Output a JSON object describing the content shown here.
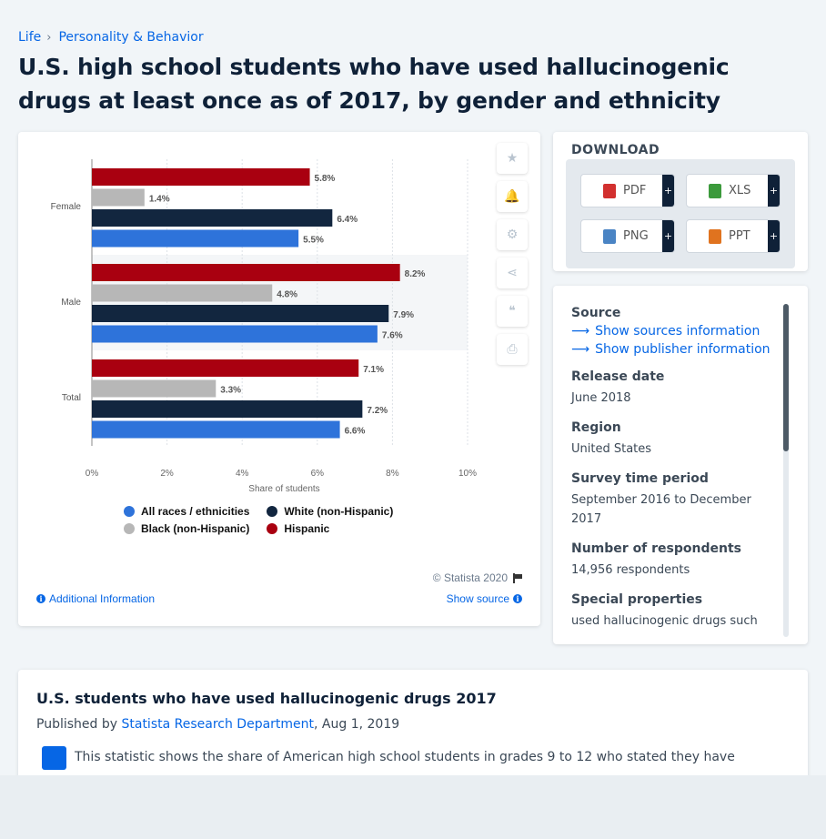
{
  "breadcrumb": {
    "items": [
      "Life",
      "Personality & Behavior"
    ],
    "separator": "›"
  },
  "page_title": "U.S. high school students who have used hallucinogenic drugs at least once as of 2017, by gender and ethnicity",
  "chart_data": {
    "type": "bar",
    "orientation": "horizontal",
    "categories": [
      "Female",
      "Male",
      "Total"
    ],
    "series": [
      {
        "name": "Hispanic",
        "color": "#a90010",
        "values": [
          5.8,
          8.2,
          7.1
        ]
      },
      {
        "name": "Black (non-Hispanic)",
        "color": "#b7b7b7",
        "values": [
          1.4,
          4.8,
          3.3
        ]
      },
      {
        "name": "White (non-Hispanic)",
        "color": "#12263f",
        "values": [
          6.4,
          7.9,
          7.2
        ]
      },
      {
        "name": "All races / ethnicities",
        "color": "#2e73da",
        "values": [
          5.5,
          7.6,
          6.6
        ]
      }
    ],
    "data_labels": [
      [
        "5.8%",
        "1.4%",
        "6.4%",
        "5.5%"
      ],
      [
        "8.2%",
        "4.8%",
        "7.9%",
        "7.6%"
      ],
      [
        "7.1%",
        "3.3%",
        "7.2%",
        "6.6%"
      ]
    ],
    "xlabel": "Share of students",
    "xlim": [
      0,
      10
    ],
    "xticks": [
      "0%",
      "2%",
      "4%",
      "6%",
      "8%",
      "10%"
    ],
    "grid": true,
    "legend_position": "bottom",
    "legend_order": [
      "All races / ethnicities",
      "White (non-Hispanic)",
      "Black (non-Hispanic)",
      "Hispanic"
    ]
  },
  "chart_footer": {
    "copyright": "© Statista 2020",
    "additional_info": "Additional Information",
    "show_source": "Show source"
  },
  "toolbar": {
    "icons": [
      "star-icon",
      "bell-icon",
      "gear-icon",
      "share-icon",
      "quote-icon",
      "print-icon"
    ]
  },
  "download": {
    "heading": "DOWNLOAD",
    "buttons": [
      {
        "label": "PDF",
        "icon_color": "#d2302f"
      },
      {
        "label": "XLS",
        "icon_color": "#3c9a3c"
      },
      {
        "label": "PNG",
        "icon_color": "#4a84c4"
      },
      {
        "label": "PPT",
        "icon_color": "#e0731f"
      }
    ],
    "plus": "+"
  },
  "info": {
    "source_label": "Source",
    "sources_link": "Show sources information",
    "publisher_link": "Show publisher information",
    "release_label": "Release date",
    "release_value": "June 2018",
    "region_label": "Region",
    "region_value": "United States",
    "survey_label": "Survey time period",
    "survey_value": "September 2016 to December 2017",
    "respondents_label": "Number of respondents",
    "respondents_value": "14,956 respondents",
    "special_label": "Special properties",
    "special_value": "used hallucinogenic drugs such"
  },
  "description": {
    "title": "U.S. students who have used hallucinogenic drugs 2017",
    "published_by_prefix": "Published by",
    "publisher": "Statista Research Department",
    "date": ", Aug 1, 2019",
    "text": "This statistic shows the share of American high school students in grades 9 to 12 who stated they have"
  }
}
